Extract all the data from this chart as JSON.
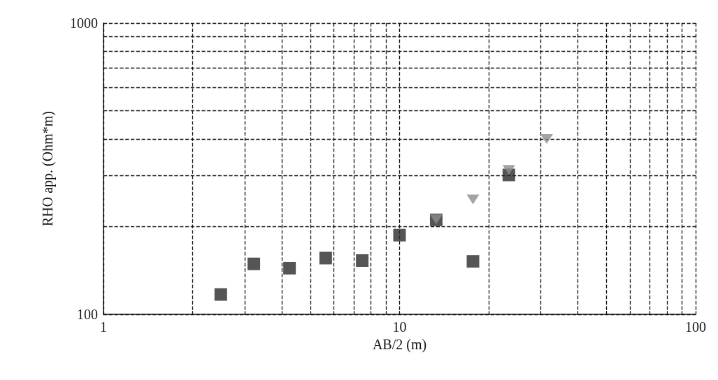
{
  "chart_data": {
    "type": "scatter",
    "xlabel": "AB/2 (m)",
    "ylabel": "RHO app. (Ohm*m)",
    "log": "xy",
    "grid": true,
    "line_style": "dashed",
    "xlim": [
      1,
      100
    ],
    "ylim": [
      100,
      1000
    ],
    "xticks": [
      1,
      {
        "value": 2,
        "label": null
      },
      {
        "value": 3,
        "label": null
      },
      {
        "value": 4,
        "label": null
      },
      {
        "value": 5,
        "label": null
      },
      {
        "value": 6,
        "label": null
      },
      {
        "value": 7,
        "label": null
      },
      {
        "value": 8,
        "label": null
      },
      {
        "value": 9,
        "label": null
      },
      10,
      {
        "value": 20,
        "label": null
      },
      {
        "value": 30,
        "label": null
      },
      {
        "value": 40,
        "label": null
      },
      {
        "value": 50,
        "label": null
      },
      {
        "value": 60,
        "label": null
      },
      {
        "value": 70,
        "label": null
      },
      {
        "value": 80,
        "label": null
      },
      {
        "value": 90,
        "label": null
      },
      100
    ],
    "yticks": [
      100,
      {
        "value": 200,
        "label": null
      },
      {
        "value": 300,
        "label": null
      },
      {
        "value": 400,
        "label": null
      },
      {
        "value": 500,
        "label": null
      },
      {
        "value": 600,
        "label": null
      },
      {
        "value": 700,
        "label": null
      },
      {
        "value": 800,
        "label": null
      },
      {
        "value": 900,
        "label": null
      },
      1000
    ],
    "series": [
      {
        "color": "#2b2b2b",
        "marker": "square",
        "x": [
          2.49,
          3.22,
          4.25,
          5.63,
          7.48,
          10.0,
          13.3,
          17.7,
          23.4
        ],
        "values": [
          117,
          149,
          144,
          156,
          153,
          187,
          211,
          152,
          301
        ]
      },
      {
        "color": "#8c8c8c",
        "marker": "triangle",
        "x": [
          13.3,
          17.7,
          23.4,
          31.4
        ],
        "values": [
          212,
          248,
          313,
          400
        ]
      }
    ]
  }
}
